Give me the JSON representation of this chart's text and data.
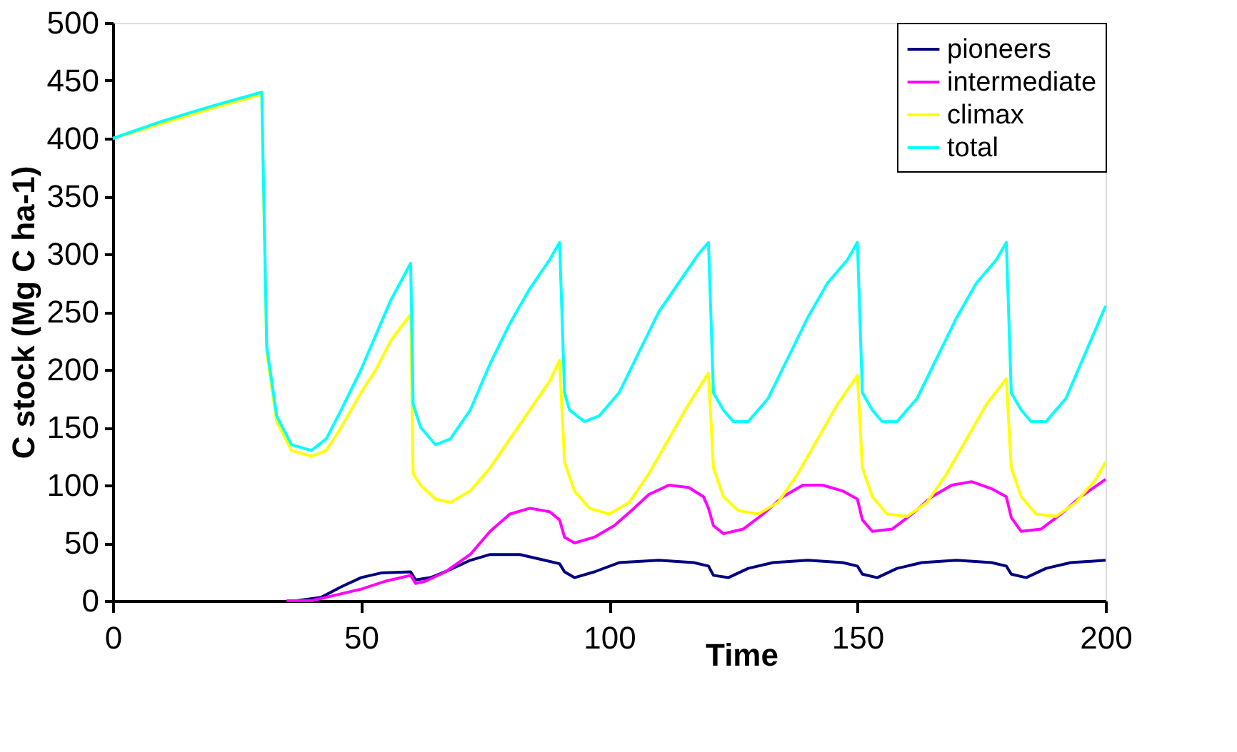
{
  "chart_data": {
    "type": "line",
    "xlabel": "Time",
    "ylabel": "C stock (Mg C ha-1)",
    "xlim": [
      0,
      200
    ],
    "ylim": [
      0,
      500
    ],
    "xticks": [
      0,
      50,
      100,
      150,
      200
    ],
    "yticks": [
      0,
      50,
      100,
      150,
      200,
      250,
      300,
      350,
      400,
      450,
      500
    ],
    "grid": false,
    "legend": "top right",
    "marker": "none",
    "line_style": "solid",
    "series": [
      {
        "name": "pioneers",
        "color": "#000080",
        "x": [
          37,
          42,
          46,
          50,
          54,
          60,
          61,
          64,
          68,
          72,
          76,
          82,
          87,
          90,
          91,
          93,
          97,
          102,
          110,
          117,
          120,
          121,
          124,
          128,
          133,
          140,
          147,
          150,
          151,
          154,
          158,
          163,
          170,
          177,
          180,
          181,
          184,
          188,
          193,
          200
        ],
        "values": [
          0,
          3,
          12,
          20,
          24,
          25,
          18,
          20,
          27,
          35,
          40,
          40,
          35,
          32,
          25,
          20,
          25,
          33,
          35,
          33,
          30,
          22,
          20,
          28,
          33,
          35,
          33,
          30,
          23,
          20,
          28,
          33,
          35,
          33,
          30,
          23,
          20,
          28,
          33,
          35
        ]
      },
      {
        "name": "intermediate",
        "color": "#ff00ff",
        "x": [
          35,
          40,
          45,
          50,
          55,
          60,
          61,
          63,
          67,
          72,
          76,
          80,
          84,
          88,
          90,
          91,
          93,
          97,
          101,
          105,
          108,
          112,
          116,
          119,
          120,
          121,
          123,
          127,
          131,
          135,
          139,
          143,
          147,
          150,
          151,
          153,
          157,
          161,
          165,
          169,
          173,
          177,
          180,
          181,
          183,
          187,
          191,
          195,
          200
        ],
        "values": [
          0,
          0,
          5,
          10,
          17,
          22,
          15,
          17,
          25,
          40,
          60,
          75,
          80,
          77,
          70,
          55,
          50,
          55,
          65,
          80,
          92,
          100,
          98,
          90,
          80,
          65,
          58,
          62,
          75,
          90,
          100,
          100,
          95,
          88,
          70,
          60,
          62,
          75,
          90,
          100,
          103,
          97,
          90,
          72,
          60,
          62,
          75,
          90,
          105
        ]
      },
      {
        "name": "climax",
        "color": "#ffff00",
        "x": [
          0,
          10,
          20,
          30,
          31,
          33,
          36,
          40,
          43,
          46,
          50,
          53,
          56,
          60,
          60.5,
          62,
          65,
          68,
          72,
          76,
          80,
          84,
          88,
          90,
          91,
          93,
          96,
          100,
          104,
          108,
          112,
          116,
          120,
          121,
          123,
          126,
          130,
          134,
          138,
          142,
          146,
          150,
          151,
          153,
          156,
          160,
          164,
          168,
          172,
          176,
          180,
          181,
          183,
          186,
          190,
          194,
          198,
          200
        ],
        "values": [
          400,
          413,
          426,
          438,
          215,
          155,
          130,
          125,
          130,
          150,
          180,
          200,
          225,
          248,
          110,
          100,
          88,
          85,
          95,
          115,
          140,
          165,
          190,
          208,
          120,
          95,
          80,
          75,
          85,
          110,
          140,
          170,
          197,
          115,
          90,
          78,
          75,
          85,
          110,
          140,
          170,
          195,
          115,
          90,
          75,
          73,
          85,
          110,
          140,
          170,
          192,
          115,
          90,
          75,
          73,
          85,
          105,
          120
        ]
      },
      {
        "name": "total",
        "color": "#00ffff",
        "x": [
          0,
          10,
          20,
          30,
          31,
          33,
          36,
          40,
          43,
          46,
          50,
          53,
          56,
          60,
          60.5,
          62,
          65,
          68,
          72,
          76,
          80,
          84,
          88,
          90,
          91,
          92,
          95,
          98,
          102,
          106,
          110,
          114,
          118,
          120,
          121,
          123,
          125,
          128,
          132,
          136,
          140,
          144,
          148,
          150,
          151,
          153,
          155,
          158,
          162,
          166,
          170,
          174,
          178,
          180,
          181,
          183,
          185,
          188,
          192,
          196,
          200
        ],
        "values": [
          400,
          415,
          428,
          440,
          220,
          160,
          135,
          130,
          140,
          165,
          200,
          230,
          260,
          292,
          170,
          150,
          135,
          140,
          165,
          205,
          240,
          270,
          295,
          310,
          180,
          165,
          155,
          160,
          180,
          215,
          250,
          275,
          300,
          310,
          180,
          165,
          155,
          155,
          175,
          210,
          245,
          275,
          295,
          310,
          180,
          165,
          155,
          155,
          175,
          210,
          245,
          275,
          295,
          310,
          180,
          165,
          155,
          155,
          175,
          215,
          255
        ]
      }
    ]
  }
}
